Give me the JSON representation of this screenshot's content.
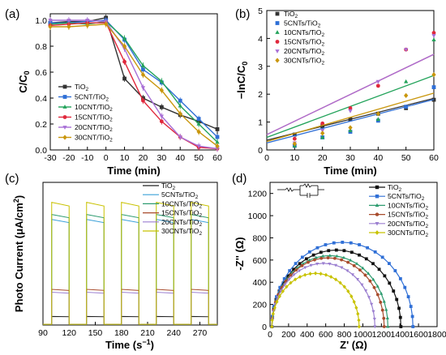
{
  "chart_data": [
    {
      "panel": "(a)",
      "type": "line",
      "xlabel": "Time (min)",
      "ylabel": "C/C0",
      "xlim": [
        -30,
        60
      ],
      "ylim": [
        0.0,
        1.05
      ],
      "xticks": [
        -30,
        -20,
        -10,
        0,
        10,
        20,
        30,
        40,
        50,
        60
      ],
      "yticks": [
        0.0,
        0.2,
        0.4,
        0.6,
        0.8,
        1.0
      ],
      "x": [
        -30,
        -20,
        -10,
        0,
        10,
        20,
        30,
        40,
        50,
        60
      ],
      "legend_position": "left",
      "series": [
        {
          "name": "TiO2",
          "color": "#333333",
          "values": [
            0.98,
            0.99,
            0.99,
            1.02,
            0.55,
            0.4,
            0.33,
            0.27,
            0.22,
            0.16
          ]
        },
        {
          "name": "5CNT/TiO2",
          "color": "#2f6fd6",
          "values": [
            0.98,
            0.98,
            0.99,
            1.0,
            0.85,
            0.62,
            0.52,
            0.38,
            0.24,
            0.1
          ]
        },
        {
          "name": "10CNT/TiO2",
          "color": "#22a35a",
          "values": [
            0.97,
            0.98,
            0.97,
            0.99,
            0.86,
            0.65,
            0.53,
            0.34,
            0.2,
            0.06
          ]
        },
        {
          "name": "15CNT/TiO2",
          "color": "#e0283c",
          "values": [
            0.96,
            0.97,
            0.98,
            0.98,
            0.68,
            0.38,
            0.22,
            0.1,
            0.02,
            0.01
          ]
        },
        {
          "name": "20CNT/TiO2",
          "color": "#a86fd6",
          "values": [
            1.0,
            1.0,
            1.0,
            0.99,
            0.78,
            0.48,
            0.26,
            0.1,
            0.03,
            0.01
          ]
        },
        {
          "name": "30CNT/TiO2",
          "color": "#c9960c",
          "values": [
            0.95,
            0.95,
            0.96,
            0.97,
            0.8,
            0.58,
            0.46,
            0.28,
            0.14,
            0.03
          ]
        }
      ]
    },
    {
      "panel": "(b)",
      "type": "scatter",
      "xlabel": "Time (min)",
      "ylabel": "-lnC/C0",
      "xlim": [
        0,
        60
      ],
      "ylim": [
        0,
        5
      ],
      "xticks": [
        0,
        10,
        20,
        30,
        40,
        50,
        60
      ],
      "yticks": [
        0,
        1,
        2,
        3,
        4,
        5
      ],
      "x": [
        10,
        20,
        30,
        40,
        50,
        60
      ],
      "legend_position": "top-left",
      "series": [
        {
          "name": "TiO2",
          "color": "#333333",
          "values": [
            0.55,
            0.85,
            1.1,
            1.3,
            1.5,
            1.8
          ],
          "fit": [
            0.35,
            0.025
          ]
        },
        {
          "name": "5CNTs/TiO2",
          "color": "#2f6fd6",
          "values": [
            0.15,
            0.45,
            0.65,
            1.05,
            1.55,
            2.25
          ],
          "fit": [
            0.25,
            0.026
          ]
        },
        {
          "name": "10CNTs/TiO2",
          "color": "#22a35a",
          "values": [
            0.15,
            0.45,
            0.7,
            1.1,
            2.45,
            3.95
          ],
          "fit": [
            0.45,
            0.037
          ]
        },
        {
          "name": "15CNTs/TiO2",
          "color": "#e0283c",
          "values": [
            0.4,
            0.95,
            1.5,
            2.3,
            3.6,
            4.2
          ],
          "fit": [
            0.55,
            0.048
          ]
        },
        {
          "name": "20CNTs/TiO2",
          "color": "#a86fd6",
          "values": [
            0.25,
            0.7,
            1.4,
            2.45,
            3.6,
            4.1
          ],
          "fit": [
            0.55,
            0.048
          ]
        },
        {
          "name": "30CNTs/TiO2",
          "color": "#c9960c",
          "values": [
            0.22,
            0.6,
            0.8,
            1.3,
            1.95,
            2.7
          ],
          "fit": [
            0.3,
            0.029
          ]
        }
      ]
    },
    {
      "panel": "(c)",
      "type": "line",
      "xlabel": "Time (s-1)",
      "ylabel": "Photo Current (μA/cm2)",
      "xlim": [
        90,
        290
      ],
      "ylim": [
        0,
        200
      ],
      "xticks": [
        90,
        120,
        150,
        180,
        210,
        240,
        270
      ],
      "on_intervals": [
        [
          100,
          120
        ],
        [
          140,
          160
        ],
        [
          180,
          200
        ],
        [
          220,
          240
        ],
        [
          260,
          280
        ]
      ],
      "legend_position": "top-right",
      "series": [
        {
          "name": "TiO2",
          "color": "#222222",
          "on": 12
        },
        {
          "name": "5CNTs/TiO2",
          "color": "#3aa0d8",
          "on": 148
        },
        {
          "name": "10CNTs/TiO2",
          "color": "#2e9c70",
          "on": 155
        },
        {
          "name": "15CNTs/TiO2",
          "color": "#a84b2c",
          "on": 50
        },
        {
          "name": "20CNTs/TiO2",
          "color": "#9b7fd0",
          "on": 46
        },
        {
          "name": "30CNTs/TiO2",
          "color": "#c8c200",
          "on": 172
        }
      ]
    },
    {
      "panel": "(d)",
      "type": "scatter",
      "xlabel": "Z' (Ω)",
      "ylabel": "-Z'' (Ω)",
      "xlim": [
        0,
        1800
      ],
      "ylim": [
        0,
        1300
      ],
      "xticks": [
        0,
        200,
        400,
        600,
        800,
        1000,
        1200,
        1400,
        1600,
        1800
      ],
      "yticks": [
        0,
        200,
        400,
        600,
        800,
        1000,
        1200
      ],
      "legend_position": "top-right",
      "series": [
        {
          "name": "TiO2",
          "color": "#111111",
          "x_start": 20,
          "diameter": 1390,
          "peak": 690
        },
        {
          "name": "5CNTs/TiO2",
          "color": "#2f6fd6",
          "x_start": 20,
          "diameter": 1520,
          "peak": 760
        },
        {
          "name": "10CNTs/TiO2",
          "color": "#2e9c70",
          "x_start": 20,
          "diameter": 1250,
          "peak": 640
        },
        {
          "name": "15CNTs/TiO2",
          "color": "#a84b2c",
          "x_start": 20,
          "diameter": 1210,
          "peak": 620
        },
        {
          "name": "20CNTs/TiO2",
          "color": "#9b7fd0",
          "x_start": 20,
          "diameter": 1110,
          "peak": 570
        },
        {
          "name": "30CNTs/TiO2",
          "color": "#c8c200",
          "x_start": 20,
          "diameter": 940,
          "peak": 480
        }
      ]
    }
  ]
}
